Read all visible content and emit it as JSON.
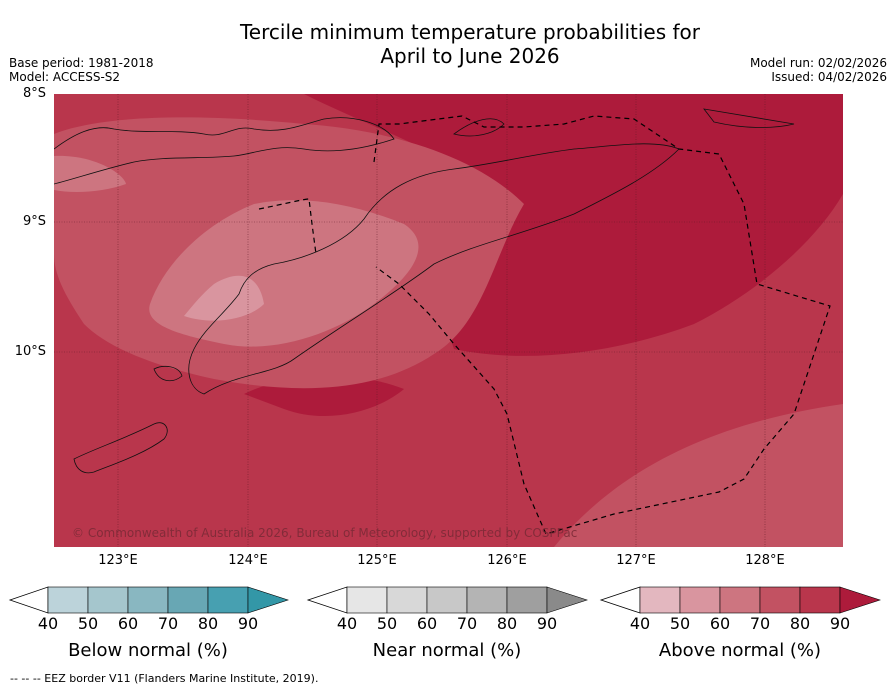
{
  "title_line1": "Tercile minimum temperature probabilities for",
  "title_line2": "April to June 2026",
  "base_period": "Base period: 1981-2018",
  "model": "Model: ACCESS-S2",
  "model_run": "Model run: 02/02/2026",
  "issued": "Issued: 04/02/2026",
  "copyright": "© Commonwealth of Australia 2026, Bureau of Meteorology, supported by COSPPac",
  "footer": "--  --  -- EEZ border V11 (Flanders Marine Institute, 2019).",
  "map": {
    "lon_ticks": [
      "123°E",
      "124°E",
      "125°E",
      "126°E",
      "127°E",
      "128°E"
    ],
    "lat_ticks": [
      "8°S",
      "9°S",
      "10°S"
    ],
    "gridlines": true,
    "dominant_category": "Above normal"
  },
  "colorbars": [
    {
      "label": "Below normal (%)",
      "ticks": [
        "40",
        "50",
        "60",
        "70",
        "80",
        "90"
      ],
      "colors": [
        "#bcd3da",
        "#a5c6cd",
        "#89b7c1",
        "#68a7b4",
        "#47a0b1",
        "#3397a7"
      ]
    },
    {
      "label": "Near normal (%)",
      "ticks": [
        "40",
        "50",
        "60",
        "70",
        "80",
        "90"
      ],
      "colors": [
        "#e6e6e6",
        "#d8d8d8",
        "#c8c8c8",
        "#b4b4b4",
        "#9f9f9f",
        "#8a8a8a"
      ]
    },
    {
      "label": "Above normal (%)",
      "ticks": [
        "40",
        "50",
        "60",
        "70",
        "80",
        "90"
      ],
      "colors": [
        "#e3b7bf",
        "#d9959f",
        "#cd7580",
        "#c25262",
        "#b9364c",
        "#ad1b3b"
      ]
    }
  ]
}
